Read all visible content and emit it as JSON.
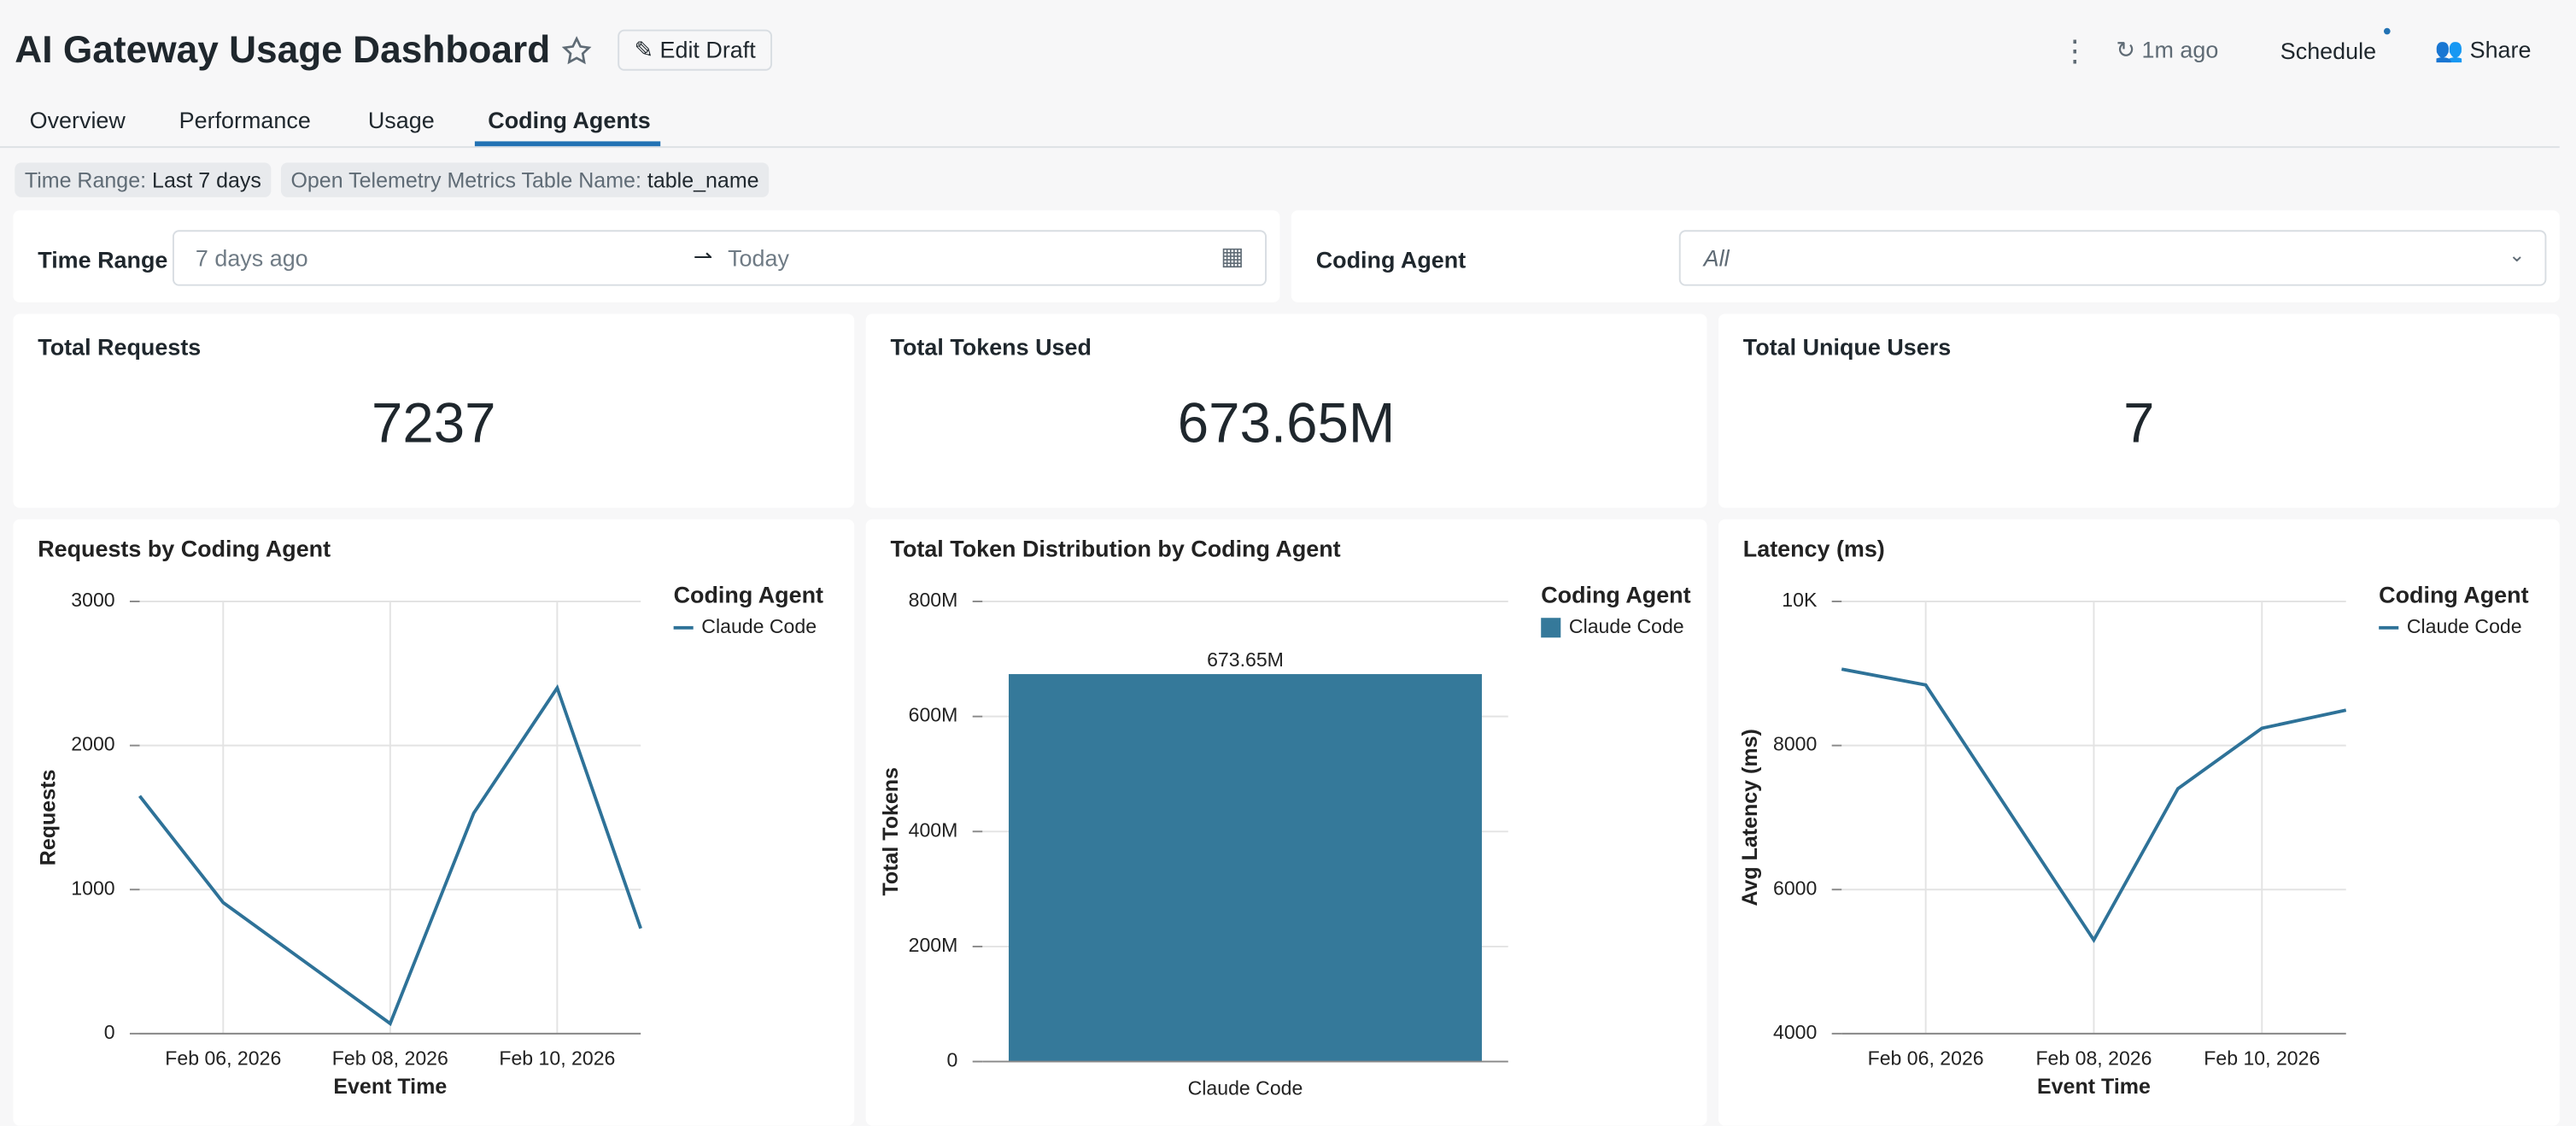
{
  "header": {
    "title": "AI Gateway Usage Dashboard",
    "edit": "Edit Draft",
    "refresh": "1m ago",
    "schedule": "Schedule",
    "share": "Share"
  },
  "tabs": [
    "Overview",
    "Performance",
    "Usage",
    "Coding Agents"
  ],
  "chips": [
    {
      "key": "Time Range:",
      "value": "Last 7 days"
    },
    {
      "key": "Open Telemetry Metrics Table Name:",
      "value": "table_name"
    }
  ],
  "filters": {
    "time_label": "Time Range",
    "from": "7 days ago",
    "to": "Today",
    "agent_label": "Coding Agent",
    "agent_value": "All"
  },
  "kpis": [
    {
      "label": "Total Requests",
      "value": "7237"
    },
    {
      "label": "Total Tokens Used",
      "value": "673.65M"
    },
    {
      "label": "Total Unique Users",
      "value": "7"
    }
  ],
  "chart_data": [
    {
      "type": "line",
      "title": "Requests by Coding Agent",
      "x_label": "Event Time",
      "y_label": "Requests",
      "legend_title": "Coding Agent",
      "x": [
        "2026-02-05",
        "2026-02-06",
        "2026-02-08",
        "2026-02-09",
        "2026-02-10",
        "2026-02-11"
      ],
      "series": [
        {
          "name": "Claude Code",
          "color": "#2e7298",
          "values": [
            1650,
            910,
            70,
            1530,
            2400,
            730
          ]
        }
      ],
      "xlim": [
        "2026-02-05",
        "2026-02-11"
      ],
      "xticks": [
        {
          "value": "2026-02-06",
          "label": "Feb 06, 2026"
        },
        {
          "value": "2026-02-08",
          "label": "Feb 08, 2026"
        },
        {
          "value": "2026-02-10",
          "label": "Feb 10, 2026"
        }
      ],
      "ylim": [
        0,
        3000
      ],
      "yticks": [
        0,
        1000,
        2000,
        3000
      ],
      "grid": true
    },
    {
      "type": "bar",
      "title": "Total Token Distribution by Coding Agent",
      "y_label": "Total Tokens",
      "legend_title": "Coding Agent",
      "categories": [
        "Claude Code"
      ],
      "series": [
        {
          "name": "Claude Code",
          "color": "#35799a",
          "values": [
            673650000
          ],
          "value_labels": [
            "673.65M"
          ]
        }
      ],
      "ylim": [
        0,
        800000000
      ],
      "yticks": [
        0,
        {
          "value": 200000000,
          "label": "200M"
        },
        {
          "value": 400000000,
          "label": "400M"
        },
        {
          "value": 600000000,
          "label": "600M"
        },
        {
          "value": 800000000,
          "label": "800M"
        }
      ],
      "grid": true
    },
    {
      "type": "line",
      "title": "Latency (ms)",
      "x_label": "Event Time",
      "y_label": "Avg Latency (ms)",
      "legend_title": "Coding Agent",
      "x": [
        "2026-02-05",
        "2026-02-06",
        "2026-02-08",
        "2026-02-09",
        "2026-02-10",
        "2026-02-11"
      ],
      "series": [
        {
          "name": "Claude Code",
          "color": "#2e7298",
          "values": [
            9060,
            8840,
            5300,
            7400,
            8240,
            8490
          ]
        }
      ],
      "xlim": [
        "2026-02-05",
        "2026-02-11"
      ],
      "xticks": [
        {
          "value": "2026-02-06",
          "label": "Feb 06, 2026"
        },
        {
          "value": "2026-02-08",
          "label": "Feb 08, 2026"
        },
        {
          "value": "2026-02-10",
          "label": "Feb 10, 2026"
        }
      ],
      "ylim": [
        4000,
        10000
      ],
      "yticks": [
        4000,
        6000,
        8000,
        {
          "value": 10000,
          "label": "10K"
        }
      ],
      "grid": true
    }
  ]
}
